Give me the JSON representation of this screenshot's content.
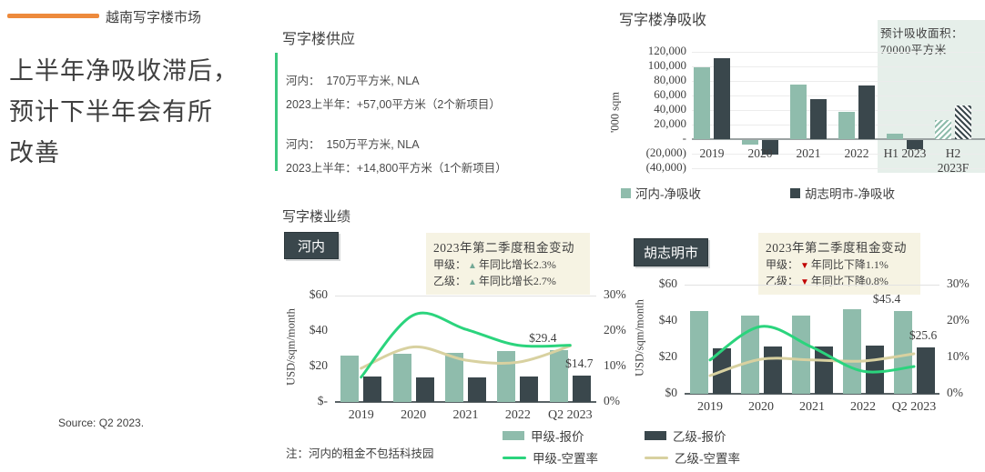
{
  "header": {
    "title": "越南写字楼市场",
    "accent_color": "#ED8A3C"
  },
  "headline": {
    "lines": [
      "上半年净吸收滞后，",
      "预计下半年会有所",
      "改善"
    ]
  },
  "source": "Source: Q2 2023.",
  "glyphs": {
    "up_triangle": "▲",
    "down_triangle": "▼"
  },
  "supply": {
    "title": "写字楼供应",
    "accent_color": "#3CC87E",
    "blocks": [
      {
        "line1": "河内：  170万平方米, NLA",
        "line2": "2023上半年：+57,00平方米（2个新项目）"
      },
      {
        "line1": "河内：  150万平方米, NLA",
        "line2": "2023上半年：+14,800平方米（1个新项目）"
      }
    ]
  },
  "performance": {
    "title": "写字楼业绩",
    "note": "注：河内的租金不包括科技园"
  },
  "legend": {
    "items": [
      {
        "label": "甲级-报价",
        "marker": "bar",
        "color": "#8FBCAC"
      },
      {
        "label": "乙级-报价",
        "marker": "bar",
        "color": "#3A474C"
      },
      {
        "label": "甲级-空置率",
        "marker": "line",
        "color": "#2BD47D"
      },
      {
        "label": "乙级-空置率",
        "marker": "line",
        "color": "#D8D1A0"
      }
    ]
  },
  "chart_data": [
    {
      "id": "net-absorption",
      "type": "bar",
      "title": "写字楼净吸收",
      "ylabel": "'000 sqm",
      "categories": [
        "2019",
        "2020",
        "2021",
        "2022",
        "H1 2023",
        "H2\n2023F"
      ],
      "series": [
        {
          "name": "河内-净吸收",
          "color": "#8FBCAC",
          "values": [
            99000,
            -6000,
            75000,
            37000,
            7000,
            26000
          ]
        },
        {
          "name": "胡志明市-净吸收",
          "color": "#3A474C",
          "values": [
            111000,
            -20000,
            55000,
            74000,
            -13000,
            46000
          ]
        }
      ],
      "ylim": [
        -40000,
        120000
      ],
      "ytick_step": 20000,
      "ytick_labels": [
        "120,000",
        "100,000",
        "80,000",
        "60,000",
        "40,000",
        "20,000",
        "-",
        "(20,000)",
        "(40,000)"
      ],
      "legend_position": "bottom",
      "grid": true,
      "forecast": {
        "annotation_line1": "预计吸收面积：",
        "annotation_line2": "70000平方米",
        "region_bg": "#E6EFEA",
        "hatched_category": "H2 2023F",
        "hatched_category_index": 5
      }
    },
    {
      "id": "hanoi-performance",
      "type": "bar",
      "city": "河内",
      "annotation": {
        "title": "2023年第二季度租金变动",
        "rows": [
          {
            "label": "甲级：",
            "direction": "up",
            "text": "年同比增长2.3%"
          },
          {
            "label": "乙级：",
            "direction": "up",
            "text": "年同比增长2.7%"
          }
        ]
      },
      "categories": [
        "2019",
        "2020",
        "2021",
        "2022",
        "Q2 2023"
      ],
      "left_axis": {
        "label": "USD/sqm/month",
        "ticks": [
          "$60",
          "$40",
          "$20",
          "$-"
        ],
        "max": 60
      },
      "right_axis": {
        "ticks": [
          "30%",
          "20%",
          "10%",
          "0%"
        ],
        "max": 30
      },
      "bar_series": [
        {
          "name": "甲级-报价",
          "color": "#8FBCAC",
          "values": [
            26.3,
            27.2,
            27.7,
            28.9,
            29.4
          ]
        },
        {
          "name": "乙级-报价",
          "color": "#3A474C",
          "values": [
            14.2,
            14.1,
            14.1,
            14.5,
            14.7
          ]
        }
      ],
      "line_series": [
        {
          "name": "乙级-空置率",
          "color": "#D8D1A0",
          "values": [
            9.5,
            15.5,
            11.8,
            11.2,
            15.8
          ]
        },
        {
          "name": "甲级-空置率",
          "color": "#2BD47D",
          "values": [
            7.0,
            24.5,
            20.5,
            16.0,
            16.0
          ]
        }
      ],
      "data_labels": [
        {
          "text": "$29.4",
          "series": 0
        },
        {
          "text": "$14.7",
          "series": 1
        }
      ]
    },
    {
      "id": "hcmc-performance",
      "type": "bar",
      "city": "胡志明市",
      "annotation": {
        "title": "2023年第二季度租金变动",
        "rows": [
          {
            "label": "甲级：",
            "direction": "down",
            "text": "年同比下降1.1%"
          },
          {
            "label": "乙级：",
            "direction": "down",
            "text": "年同比下降0.8%"
          }
        ]
      },
      "categories": [
        "2019",
        "2020",
        "2021",
        "2022",
        "Q2 2023"
      ],
      "left_axis": {
        "label": "USD/sqm/month",
        "ticks": [
          "$60",
          "$40",
          "$20",
          "$0"
        ],
        "max": 60
      },
      "right_axis": {
        "ticks": [
          "30%",
          "20%",
          "10%",
          "0%"
        ],
        "max": 30
      },
      "bar_series": [
        {
          "name": "甲级-报价",
          "color": "#8FBCAC",
          "values": [
            45.5,
            43.0,
            43.2,
            46.3,
            45.4
          ]
        },
        {
          "name": "乙级-报价",
          "color": "#3A474C",
          "values": [
            25.1,
            25.8,
            25.9,
            26.3,
            25.6
          ]
        }
      ],
      "line_series": [
        {
          "name": "乙级-空置率",
          "color": "#D8D1A0",
          "values": [
            5.0,
            9.5,
            9.3,
            9.0,
            11.0
          ]
        },
        {
          "name": "甲级-空置率",
          "color": "#2BD47D",
          "values": [
            9.3,
            18.5,
            12.8,
            6.2,
            7.5
          ]
        }
      ],
      "data_labels": [
        {
          "text": "$45.4",
          "series": 0
        },
        {
          "text": "$25.6",
          "series": 1
        }
      ]
    }
  ]
}
